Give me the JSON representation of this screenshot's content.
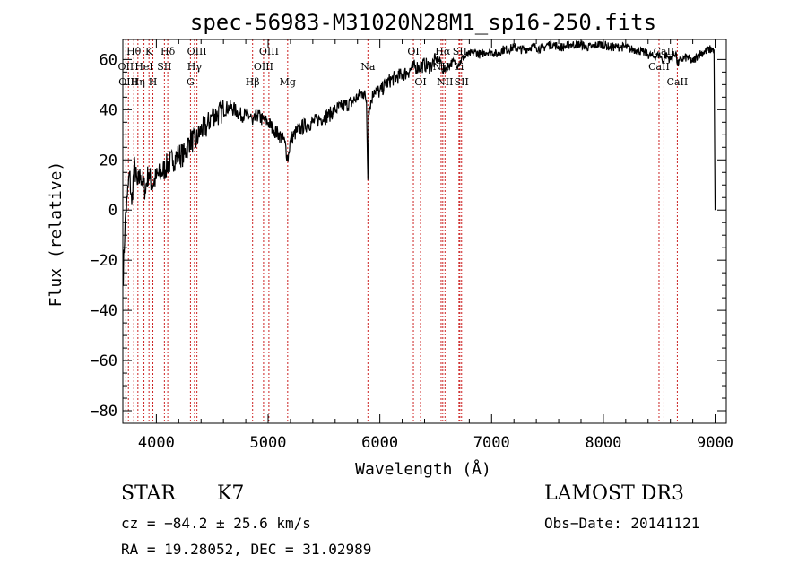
{
  "chart_data": {
    "type": "line",
    "title": "spec-56983-M31020N28M1_sp16-250.fits",
    "xlabel": "Wavelength (Å)",
    "ylabel": "Flux (relative)",
    "xlim": [
      3700,
      9100
    ],
    "ylim": [
      -85,
      68
    ],
    "xticks": [
      4000,
      5000,
      6000,
      7000,
      8000,
      9000
    ],
    "yticks": [
      -80,
      -60,
      -40,
      -20,
      0,
      20,
      40,
      60
    ],
    "grid": false,
    "series": [
      {
        "name": "spectrum",
        "x": [
          3700,
          3720,
          3740,
          3760,
          3780,
          3800,
          3830,
          3860,
          3900,
          3930,
          3960,
          4000,
          4050,
          4100,
          4150,
          4200,
          4250,
          4300,
          4350,
          4400,
          4450,
          4500,
          4550,
          4600,
          4650,
          4700,
          4750,
          4800,
          4850,
          4861,
          4900,
          4950,
          5000,
          5050,
          5100,
          5150,
          5175,
          5200,
          5250,
          5300,
          5350,
          5400,
          5450,
          5500,
          5550,
          5600,
          5650,
          5700,
          5750,
          5800,
          5850,
          5880,
          5893,
          5900,
          5950,
          6000,
          6050,
          6100,
          6150,
          6200,
          6250,
          6300,
          6350,
          6400,
          6450,
          6500,
          6550,
          6563,
          6600,
          6650,
          6700,
          6750,
          6800,
          6850,
          6900,
          6950,
          7000,
          7050,
          7100,
          7150,
          7200,
          7250,
          7300,
          7350,
          7400,
          7450,
          7500,
          7550,
          7600,
          7650,
          7700,
          7750,
          7800,
          7850,
          7900,
          7950,
          8000,
          8050,
          8100,
          8150,
          8200,
          8250,
          8300,
          8350,
          8400,
          8450,
          8500,
          8542,
          8550,
          8600,
          8650,
          8662,
          8700,
          8750,
          8800,
          8850,
          8900,
          8950,
          8990,
          9000
        ],
        "y": [
          -30,
          -5,
          5,
          15,
          2,
          18,
          10,
          14,
          8,
          15,
          10,
          13,
          15,
          18,
          20,
          22,
          22,
          28,
          27,
          32,
          33,
          38,
          38,
          40,
          41,
          40,
          38,
          38,
          37,
          34,
          38,
          36,
          35,
          32,
          30,
          27,
          20,
          28,
          31,
          33,
          34,
          35,
          36,
          37,
          38,
          40,
          41,
          42,
          43,
          45,
          47,
          44,
          12,
          40,
          48,
          47,
          50,
          52,
          53,
          54,
          55,
          57,
          57,
          58,
          57,
          60,
          59,
          55,
          57,
          59,
          58,
          61,
          62,
          63,
          62,
          63,
          63,
          62,
          64,
          64,
          65,
          64,
          64,
          65,
          65,
          64,
          66,
          66,
          65,
          65,
          66,
          66,
          66,
          65,
          65,
          66,
          66,
          65,
          65,
          65,
          65,
          64,
          64,
          63,
          62,
          61,
          62,
          59,
          62,
          60,
          63,
          58,
          60,
          61,
          59,
          62,
          63,
          64,
          64,
          0
        ]
      }
    ],
    "lines": [
      {
        "name": "Hθ",
        "wl": 3798,
        "row": 0
      },
      {
        "name": "OII",
        "wl": 3727,
        "row": 1
      },
      {
        "name": "OIII",
        "wl": 3750,
        "row": 2
      },
      {
        "name": "K",
        "wl": 3934,
        "row": 0
      },
      {
        "name": "HeI",
        "wl": 3889,
        "row": 1
      },
      {
        "name": "Hη",
        "wl": 3835,
        "row": 2
      },
      {
        "name": "SII",
        "wl": 4072,
        "row": 1
      },
      {
        "name": "H",
        "wl": 3969,
        "row": 2
      },
      {
        "name": "Hδ",
        "wl": 4102,
        "row": 0
      },
      {
        "name": "OIII",
        "wl": 4363,
        "row": 0
      },
      {
        "name": "Hγ",
        "wl": 4341,
        "row": 1
      },
      {
        "name": "G",
        "wl": 4305,
        "row": 2
      },
      {
        "name": "Hβ",
        "wl": 4861,
        "row": 2
      },
      {
        "name": "OIII",
        "wl": 5007,
        "row": 0
      },
      {
        "name": "OIII",
        "wl": 4959,
        "row": 1
      },
      {
        "name": "Mg",
        "wl": 5175,
        "row": 2
      },
      {
        "name": "Na",
        "wl": 5893,
        "row": 1
      },
      {
        "name": "OI",
        "wl": 6300,
        "row": 0
      },
      {
        "name": "OI",
        "wl": 6364,
        "row": 2
      },
      {
        "name": "Hα",
        "wl": 6563,
        "row": 0
      },
      {
        "name": "NII",
        "wl": 6548,
        "row": 1
      },
      {
        "name": "NII",
        "wl": 6583,
        "row": 2
      },
      {
        "name": "SII",
        "wl": 6716,
        "row": 0
      },
      {
        "name": "SII",
        "wl": 6731,
        "row": 2
      },
      {
        "name": "Li",
        "wl": 6708,
        "row": 1
      },
      {
        "name": "CaII",
        "wl": 8542,
        "row": 0
      },
      {
        "name": "CaII",
        "wl": 8498,
        "row": 1
      },
      {
        "name": "CaII",
        "wl": 8662,
        "row": 2
      }
    ]
  },
  "info": {
    "object_class": "STAR",
    "subclass": "K7",
    "survey": "LAMOST DR3",
    "cz": "cz = −84.2 ± 25.6 km/s",
    "obs_date": "Obs−Date: 20141121",
    "coords": "RA =  19.28052, DEC =  31.02989"
  }
}
